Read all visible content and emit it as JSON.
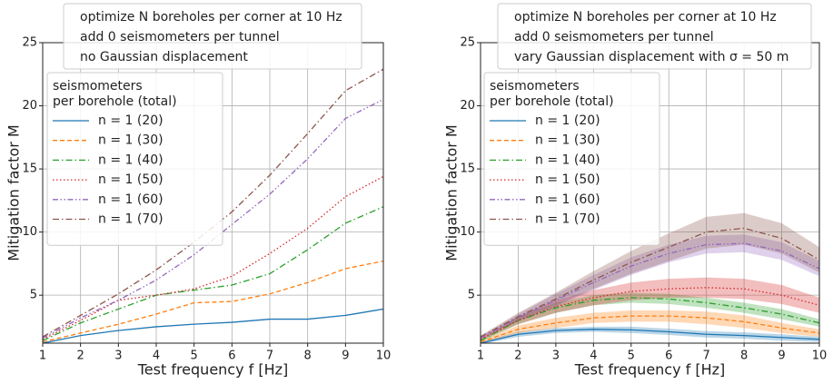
{
  "chart_data": [
    {
      "type": "line",
      "annotations": [
        "optimize N boreholes per corner at 10 Hz",
        "add 0 seismometers per tunnel",
        "no Gaussian displacement"
      ],
      "legend_title": [
        "seismometers",
        "per borehole (total)"
      ],
      "x_label": "Test frequency f [Hz]",
      "y_label": "Mitigation factor M",
      "x": [
        1,
        2,
        3,
        4,
        5,
        6,
        7,
        8,
        9,
        10
      ],
      "xlim": [
        1,
        10
      ],
      "xticks": [
        1,
        2,
        3,
        4,
        5,
        6,
        7,
        8,
        9,
        10
      ],
      "ylim": [
        1.2,
        25
      ],
      "yticks": [
        5,
        10,
        15,
        20,
        25
      ],
      "grid": true,
      "series": [
        {
          "name": "n = 1 (20)",
          "color": "#1f77b4",
          "linestyle": "solid",
          "values": [
            1.2,
            1.8,
            2.2,
            2.5,
            2.7,
            2.85,
            3.1,
            3.1,
            3.4,
            3.9
          ]
        },
        {
          "name": "n = 1 (30)",
          "color": "#ff7f0e",
          "linestyle": "dashed",
          "values": [
            1.3,
            2.0,
            2.7,
            3.5,
            4.4,
            4.5,
            5.1,
            6.0,
            7.1,
            7.7
          ]
        },
        {
          "name": "n = 1 (40)",
          "color": "#2ca02c",
          "linestyle": "dashdot",
          "values": [
            1.4,
            2.8,
            3.9,
            5.0,
            5.4,
            5.8,
            6.7,
            8.6,
            10.7,
            12.0
          ]
        },
        {
          "name": "n = 1 (50)",
          "color": "#d62728",
          "linestyle": "dotted",
          "values": [
            1.5,
            3.0,
            4.6,
            5.0,
            5.5,
            6.5,
            8.3,
            10.3,
            12.8,
            14.4
          ]
        },
        {
          "name": "n = 1 (60)",
          "color": "#9467bd",
          "linestyle": "dashdotdot",
          "values": [
            1.6,
            3.2,
            4.6,
            6.2,
            8.2,
            10.6,
            13.0,
            15.8,
            19.0,
            20.5
          ]
        },
        {
          "name": "n = 1 (70)",
          "color": "#8c564b",
          "linestyle": "dashdot",
          "values": [
            1.7,
            3.4,
            5.1,
            7.0,
            9.2,
            11.6,
            14.5,
            17.8,
            21.2,
            22.9
          ]
        }
      ]
    },
    {
      "type": "line",
      "annotations": [
        "optimize N boreholes per corner at 10 Hz",
        "add 0 seismometers per tunnel",
        "vary Gaussian displacement with σ = 50 m"
      ],
      "legend_title": [
        "seismometers",
        "per borehole (total)"
      ],
      "x_label": "Test frequency f [Hz]",
      "y_label": "Mitigation factor M",
      "x": [
        1,
        2,
        3,
        4,
        5,
        6,
        7,
        8,
        9,
        10
      ],
      "xlim": [
        1,
        10
      ],
      "xticks": [
        1,
        2,
        3,
        4,
        5,
        6,
        7,
        8,
        9,
        10
      ],
      "ylim": [
        1.2,
        25
      ],
      "yticks": [
        5,
        10,
        15,
        20,
        25
      ],
      "grid": true,
      "series": [
        {
          "name": "n = 1 (20)",
          "color": "#1f77b4",
          "linestyle": "solid",
          "values": [
            1.2,
            1.9,
            2.2,
            2.3,
            2.25,
            2.1,
            1.9,
            1.8,
            1.65,
            1.5
          ],
          "lower": [
            1.1,
            1.7,
            2.0,
            2.1,
            2.0,
            1.85,
            1.65,
            1.55,
            1.4,
            1.3
          ],
          "upper": [
            1.3,
            2.1,
            2.4,
            2.5,
            2.5,
            2.35,
            2.15,
            2.05,
            1.9,
            1.7
          ]
        },
        {
          "name": "n = 1 (30)",
          "color": "#ff7f0e",
          "linestyle": "dashed",
          "values": [
            1.3,
            2.3,
            2.8,
            3.2,
            3.35,
            3.35,
            3.2,
            2.9,
            2.4,
            2.0
          ],
          "lower": [
            1.2,
            2.0,
            2.4,
            2.8,
            2.9,
            2.9,
            2.7,
            2.4,
            2.0,
            1.7
          ],
          "upper": [
            1.4,
            2.6,
            3.2,
            3.6,
            3.8,
            3.8,
            3.7,
            3.4,
            2.8,
            2.3
          ]
        },
        {
          "name": "n = 1 (40)",
          "color": "#2ca02c",
          "linestyle": "dashdot",
          "values": [
            1.4,
            3.0,
            4.0,
            4.6,
            4.8,
            4.7,
            4.4,
            4.0,
            3.5,
            2.8
          ],
          "lower": [
            1.3,
            2.7,
            3.6,
            4.2,
            4.4,
            4.3,
            4.0,
            3.6,
            3.1,
            2.5
          ],
          "upper": [
            1.5,
            3.3,
            4.4,
            5.0,
            5.2,
            5.1,
            4.8,
            4.4,
            3.9,
            3.1
          ]
        },
        {
          "name": "n = 1 (50)",
          "color": "#d62728",
          "linestyle": "dotted",
          "values": [
            1.5,
            3.0,
            4.1,
            4.8,
            5.3,
            5.5,
            5.6,
            5.5,
            5.0,
            4.2
          ],
          "lower": [
            1.4,
            2.7,
            3.6,
            4.2,
            4.6,
            4.8,
            4.8,
            4.7,
            4.3,
            3.6
          ],
          "upper": [
            1.6,
            3.3,
            4.6,
            5.4,
            6.0,
            6.3,
            6.4,
            6.3,
            5.8,
            4.8
          ]
        },
        {
          "name": "n = 1 (60)",
          "color": "#9467bd",
          "linestyle": "dashdotdot",
          "values": [
            1.6,
            3.2,
            4.6,
            6.0,
            7.3,
            8.3,
            9.0,
            9.1,
            8.5,
            7.1
          ],
          "lower": [
            1.5,
            2.9,
            4.1,
            5.4,
            6.6,
            7.6,
            8.3,
            8.4,
            7.8,
            6.5
          ],
          "upper": [
            1.7,
            3.5,
            5.1,
            6.6,
            8.0,
            9.0,
            9.7,
            9.8,
            9.2,
            7.7
          ]
        },
        {
          "name": "n = 1 (70)",
          "color": "#8c564b",
          "linestyle": "dashdot",
          "values": [
            1.7,
            3.3,
            4.7,
            6.2,
            7.6,
            8.8,
            10.0,
            10.3,
            9.5,
            7.8
          ],
          "lower": [
            1.6,
            3.0,
            4.2,
            5.5,
            6.7,
            7.7,
            8.7,
            9.0,
            8.3,
            6.8
          ],
          "upper": [
            1.8,
            3.6,
            5.2,
            6.9,
            8.5,
            9.9,
            11.2,
            11.5,
            10.7,
            8.8
          ]
        }
      ]
    }
  ]
}
